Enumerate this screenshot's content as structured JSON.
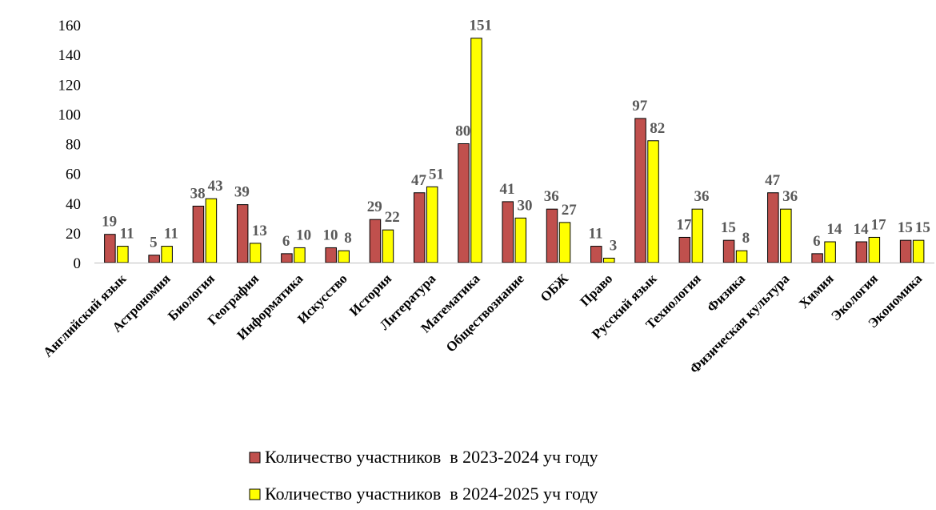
{
  "chart_data": {
    "type": "bar",
    "title": "",
    "xlabel": "",
    "ylabel": "",
    "ylim": [
      0,
      160
    ],
    "yticks": [
      0,
      20,
      40,
      60,
      80,
      100,
      120,
      140,
      160
    ],
    "grid": false,
    "legend_position": "bottom",
    "categories": [
      "Английский язык",
      "Астрономия",
      "Биология",
      "География",
      "Информатика",
      "Искусство",
      "История",
      "Литература",
      "Математика",
      "Обществознание",
      "ОБЖ",
      "Право",
      "Русский язык",
      "Технология",
      "Физика",
      "Физическая культура",
      "Химия",
      "Экология",
      "Экономика"
    ],
    "series": [
      {
        "name": "Количество участников  в 2023-2024 уч году",
        "color": "#c0504d",
        "values": [
          19,
          5,
          38,
          39,
          6,
          10,
          29,
          47,
          80,
          41,
          36,
          11,
          97,
          17,
          15,
          47,
          6,
          14,
          15
        ]
      },
      {
        "name": "Количество участников  в 2024-2025 уч году",
        "color": "#ffff00",
        "values": [
          11,
          11,
          43,
          13,
          10,
          8,
          22,
          51,
          151,
          30,
          27,
          3,
          82,
          36,
          8,
          36,
          14,
          17,
          15
        ]
      }
    ]
  }
}
